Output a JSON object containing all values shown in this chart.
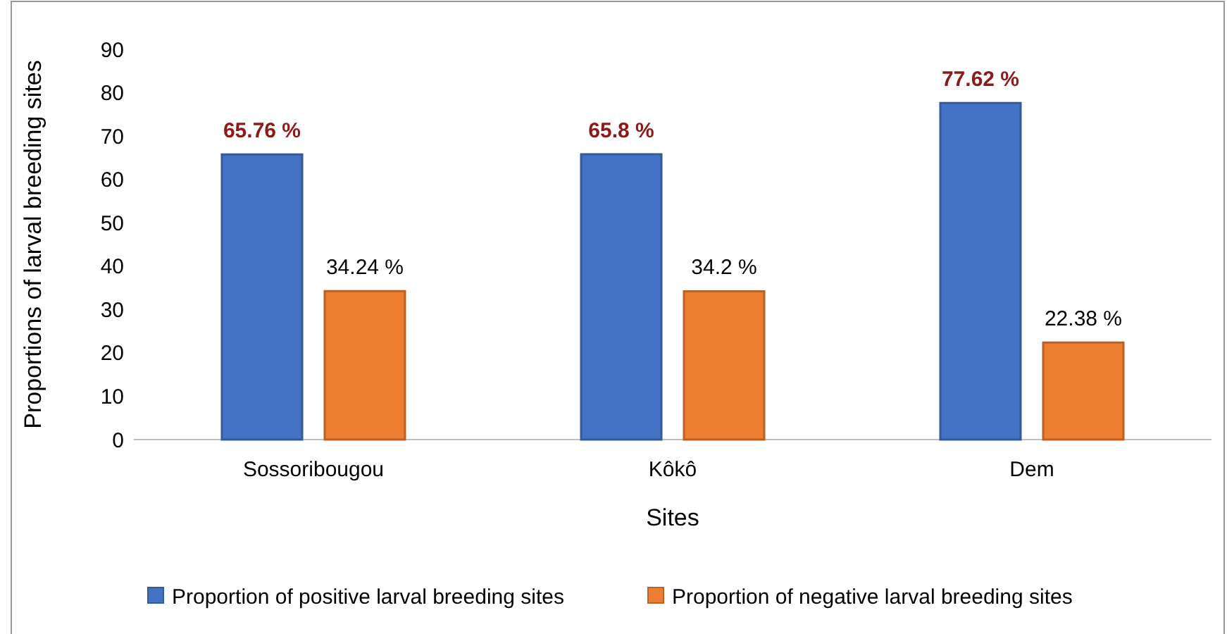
{
  "chart_data": {
    "type": "bar",
    "categories": [
      "Sossoribougou",
      "Kôkô",
      "Dem"
    ],
    "series": [
      {
        "name": "Proportion of positive larval breeding sites",
        "color": "#4472c4",
        "values": [
          65.76,
          65.8,
          77.62
        ],
        "value_labels": [
          "65.76 %",
          "65.8 %",
          "77.62 %"
        ]
      },
      {
        "name": "Proportion of negative larval breeding sites",
        "color": "#ed7d31",
        "values": [
          34.24,
          34.2,
          22.38
        ],
        "value_labels": [
          "34.24 %",
          "34.2 %",
          "22.38 %"
        ]
      }
    ],
    "xlabel": "Sites",
    "ylabel": "Proportions of larval breeding sites",
    "ylim": [
      0,
      90
    ],
    "yticks": [
      0,
      10,
      20,
      30,
      40,
      50,
      60,
      70,
      80,
      90
    ],
    "grid": false,
    "legend": "bottom"
  }
}
